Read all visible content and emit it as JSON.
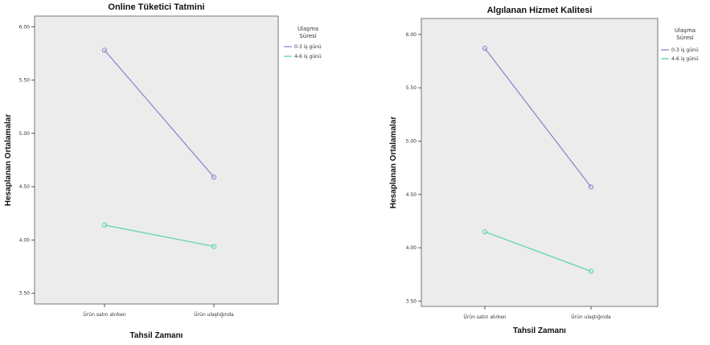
{
  "chart_data": [
    {
      "type": "line",
      "title": "Online Tüketici Tatmini",
      "xlabel": "Tahsil Zamanı",
      "ylabel": "Hesaplanan Ortalamalar",
      "categories": [
        "Ürün satın alırken",
        "Ürün ulaştığında"
      ],
      "ylim": [
        3.4,
        6.1
      ],
      "yticks": [
        3.5,
        4.0,
        4.5,
        5.0,
        5.5,
        6.0
      ],
      "ytick_labels": [
        "3.50",
        "4.00",
        "4.50",
        "5.00",
        "5.50",
        "6.00"
      ],
      "grid": false,
      "legend": {
        "title_lines": [
          "Ulaşma",
          "Süresi"
        ],
        "placement": "right"
      },
      "series": [
        {
          "name": "0-3 iş günü",
          "values": [
            5.78,
            4.59
          ],
          "color": "#8a8ad0"
        },
        {
          "name": "4-6 iş günü",
          "values": [
            4.14,
            3.94
          ],
          "color": "#5ed6a6"
        }
      ]
    },
    {
      "type": "line",
      "title": "Algılanan Hizmet Kalitesi",
      "xlabel": "Tahsil Zamanı",
      "ylabel": "Hesaplanan Ortalamalar",
      "categories": [
        "Ürün satın alırken",
        "Ürün ulaştığında"
      ],
      "ylim": [
        3.45,
        6.15
      ],
      "yticks": [
        3.5,
        4.0,
        4.5,
        5.0,
        5.5,
        6.0
      ],
      "ytick_labels": [
        "3.50",
        "4.00",
        "4.50",
        "5.00",
        "5.50",
        "6.00"
      ],
      "grid": false,
      "legend": {
        "title_lines": [
          "Ulaşma",
          "Süresi"
        ],
        "placement": "right"
      },
      "series": [
        {
          "name": "0-3 iş günü",
          "values": [
            5.87,
            4.57
          ],
          "color": "#8a8ad0"
        },
        {
          "name": "4-6 iş günü",
          "values": [
            4.15,
            3.78
          ],
          "color": "#5ed6a6"
        }
      ]
    }
  ]
}
